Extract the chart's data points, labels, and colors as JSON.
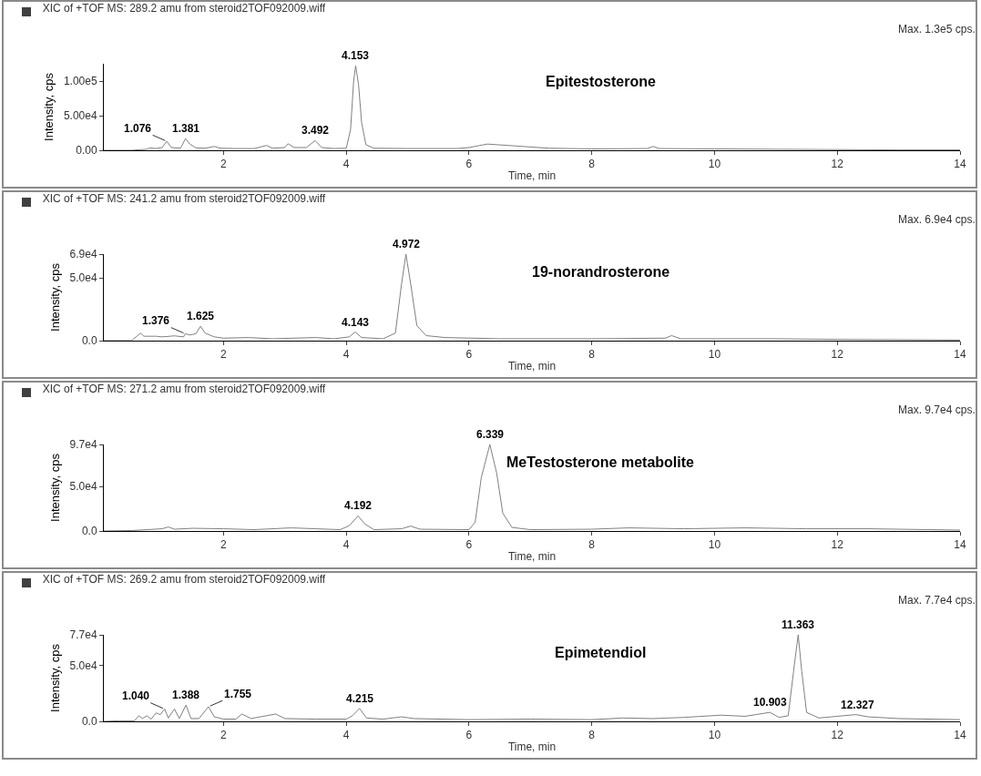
{
  "chart_data": [
    {
      "type": "line",
      "title": "XIC of +TOF MS: 289.2 amu from steroid2TOF092009.wiff",
      "xlabel": "Time, min",
      "ylabel": "Intensity, cps",
      "xlim": [
        0.05,
        14
      ],
      "xticks": [
        2,
        4,
        6,
        8,
        10,
        12,
        14
      ],
      "ylim": [
        0,
        125000
      ],
      "yticks": [
        {
          "value": 0,
          "label": "0.00"
        },
        {
          "value": 50000,
          "label": "5.00e4"
        },
        {
          "value": 100000,
          "label": "1.00e5"
        }
      ],
      "marker": "none",
      "series": [
        {
          "color": "#808080",
          "x": [
            0.05,
            0.5,
            0.75,
            0.8,
            0.9,
            1.0,
            1.076,
            1.15,
            1.3,
            1.381,
            1.45,
            1.55,
            1.7,
            1.85,
            1.95,
            2.2,
            2.5,
            2.7,
            2.8,
            3.0,
            3.05,
            3.15,
            3.35,
            3.492,
            3.6,
            3.8,
            4.0,
            4.07,
            4.12,
            4.153,
            4.2,
            4.25,
            4.32,
            4.45,
            5.0,
            5.8,
            6.0,
            6.3,
            6.8,
            7.3,
            8.0,
            8.9,
            9.0,
            9.1,
            10.0,
            11.0,
            12.0,
            13.0,
            14.0
          ],
          "values": [
            0,
            0,
            1500,
            3500,
            2500,
            4000,
            13000,
            4000,
            3000,
            17000,
            9000,
            3500,
            3000,
            5500,
            3000,
            2500,
            2500,
            7000,
            3000,
            4000,
            9500,
            4000,
            4000,
            14000,
            4000,
            2500,
            3000,
            30000,
            100000,
            122000,
            95000,
            40000,
            8000,
            3000,
            2500,
            2500,
            4000,
            9000,
            6000,
            3000,
            2000,
            2500,
            5500,
            2500,
            2000,
            1500,
            1000,
            500,
            500
          ]
        }
      ],
      "annotations": [
        "Max. 1.3e5 cps.",
        "Epitestosterone",
        {
          "text": "1.076",
          "x": 1.076,
          "y": 13000
        },
        {
          "text": "1.381",
          "x": 1.381,
          "y": 17000
        },
        {
          "text": "3.492",
          "x": 3.492,
          "y": 14000
        },
        {
          "text": "4.153",
          "x": 4.153,
          "y": 122000
        }
      ]
    },
    {
      "type": "line",
      "title": "XIC of +TOF MS: 241.2 amu from steroid2TOF092009.wiff",
      "xlabel": "Time, min",
      "ylabel": "Intensity, cps",
      "xlim": [
        0.05,
        14
      ],
      "xticks": [
        2,
        4,
        6,
        8,
        10,
        12,
        14
      ],
      "ylim": [
        0,
        69000
      ],
      "yticks": [
        {
          "value": 0,
          "label": "0.0"
        },
        {
          "value": 50000,
          "label": "5.0e4"
        },
        {
          "value": 69000,
          "label": "6.9e4"
        }
      ],
      "marker": "none",
      "series": [
        {
          "color": "#808080",
          "x": [
            0.05,
            0.5,
            0.6,
            0.65,
            0.7,
            0.9,
            1.0,
            1.2,
            1.35,
            1.376,
            1.45,
            1.55,
            1.625,
            1.7,
            1.85,
            2.0,
            2.4,
            2.8,
            3.5,
            3.8,
            4.05,
            4.143,
            4.25,
            4.6,
            4.8,
            4.9,
            4.972,
            5.05,
            5.15,
            5.3,
            5.6,
            6.5,
            8.0,
            9.2,
            9.3,
            9.45,
            11.0,
            12.0,
            14.0
          ],
          "values": [
            0,
            0,
            4000,
            6000,
            3500,
            3500,
            3000,
            3800,
            3000,
            5500,
            4500,
            5500,
            11500,
            6000,
            3000,
            2000,
            2500,
            1500,
            2500,
            1500,
            3000,
            6900,
            2500,
            1500,
            6000,
            45000,
            69000,
            45000,
            12000,
            4000,
            2500,
            1500,
            1500,
            2000,
            4000,
            1500,
            1500,
            1000,
            500
          ]
        }
      ],
      "annotations": [
        "Max. 6.9e4 cps.",
        "19-norandrosterone",
        {
          "text": "1.376",
          "x": 1.376,
          "y": 5500
        },
        {
          "text": "1.625",
          "x": 1.625,
          "y": 11500
        },
        {
          "text": "4.143",
          "x": 4.143,
          "y": 6900
        },
        {
          "text": "4.972",
          "x": 4.972,
          "y": 69000
        }
      ]
    },
    {
      "type": "line",
      "title": "XIC of +TOF MS: 271.2 amu from steroid2TOF092009.wiff",
      "xlabel": "Time, min",
      "ylabel": "Intensity, cps",
      "xlim": [
        0.05,
        14
      ],
      "xticks": [
        2,
        4,
        6,
        8,
        10,
        12,
        14
      ],
      "ylim": [
        0,
        97000
      ],
      "yticks": [
        {
          "value": 0,
          "label": "0.0"
        },
        {
          "value": 50000,
          "label": "5.0e4"
        },
        {
          "value": 97000,
          "label": "9.7e4"
        }
      ],
      "marker": "none",
      "series": [
        {
          "color": "#808080",
          "x": [
            0.05,
            0.5,
            1.0,
            1.1,
            1.2,
            1.5,
            2.0,
            2.5,
            3.1,
            3.5,
            3.9,
            4.05,
            4.192,
            4.3,
            4.45,
            4.9,
            5.05,
            5.2,
            6.0,
            6.1,
            6.2,
            6.339,
            6.45,
            6.55,
            6.7,
            7.0,
            8.0,
            8.6,
            9.5,
            10.5,
            11.5,
            12.5,
            13.5,
            14.0
          ],
          "values": [
            0,
            500,
            2500,
            4500,
            2000,
            3000,
            2500,
            1500,
            3500,
            2500,
            1500,
            6000,
            17000,
            8000,
            1500,
            2500,
            5500,
            2000,
            1500,
            10000,
            60000,
            97000,
            65000,
            20000,
            4000,
            1500,
            2000,
            3500,
            2500,
            3500,
            2500,
            2500,
            1500,
            1000
          ]
        }
      ],
      "annotations": [
        "Max. 9.7e4 cps.",
        "MeTestosterone metabolite",
        {
          "text": "4.192",
          "x": 4.192,
          "y": 17000
        },
        {
          "text": "6.339",
          "x": 6.339,
          "y": 97000
        }
      ]
    },
    {
      "type": "line",
      "title": "XIC of +TOF MS: 269.2 amu from steroid2TOF092009.wiff",
      "xlabel": "Time, min",
      "ylabel": "Intensity, cps",
      "xlim": [
        0.05,
        14
      ],
      "xticks": [
        2,
        4,
        6,
        8,
        10,
        12,
        14
      ],
      "ylim": [
        0,
        77000
      ],
      "yticks": [
        {
          "value": 0,
          "label": "0.0"
        },
        {
          "value": 50000,
          "label": "5.0e4"
        },
        {
          "value": 77000,
          "label": "7.7e4"
        }
      ],
      "marker": "none",
      "series": [
        {
          "color": "#808080",
          "x": [
            0.05,
            0.3,
            0.55,
            0.62,
            0.68,
            0.75,
            0.82,
            0.9,
            0.97,
            1.04,
            1.1,
            1.2,
            1.28,
            1.388,
            1.47,
            1.6,
            1.755,
            1.85,
            2.0,
            2.2,
            2.3,
            2.45,
            2.85,
            3.0,
            3.5,
            4.0,
            4.1,
            4.215,
            4.33,
            4.6,
            4.9,
            5.1,
            6.0,
            7.0,
            8.0,
            8.5,
            9.0,
            9.5,
            10.1,
            10.5,
            10.903,
            11.05,
            11.2,
            11.3,
            11.363,
            11.42,
            11.5,
            11.7,
            12.0,
            12.3,
            12.5,
            13.0,
            14.0
          ],
          "values": [
            0,
            500,
            500,
            5000,
            2500,
            5000,
            2000,
            7500,
            6000,
            11000,
            3000,
            11000,
            2500,
            14500,
            2500,
            2500,
            13000,
            4000,
            2000,
            2000,
            6500,
            2500,
            6500,
            2500,
            2000,
            2000,
            5000,
            11500,
            3000,
            2000,
            4000,
            2500,
            1500,
            2000,
            1500,
            3000,
            2500,
            3500,
            5500,
            4500,
            8000,
            3500,
            5000,
            50000,
            77000,
            45000,
            8000,
            3000,
            4500,
            6000,
            4000,
            2500,
            1500
          ]
        }
      ],
      "annotations": [
        "Max. 7.7e4 cps.",
        "Epimetendiol",
        {
          "text": "1.040",
          "x": 1.04,
          "y": 11000
        },
        {
          "text": "1.388",
          "x": 1.388,
          "y": 14500
        },
        {
          "text": "1.755",
          "x": 1.755,
          "y": 13000
        },
        {
          "text": "4.215",
          "x": 4.215,
          "y": 11500
        },
        {
          "text": "10.903",
          "x": 10.903,
          "y": 8000
        },
        {
          "text": "11.363",
          "x": 11.363,
          "y": 77000
        },
        {
          "text": "12.327",
          "x": 12.327,
          "y": 6000
        }
      ]
    }
  ]
}
